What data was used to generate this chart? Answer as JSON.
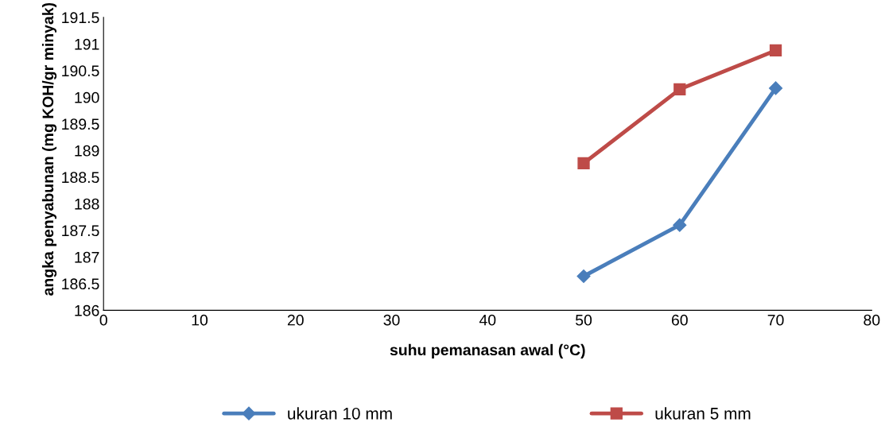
{
  "chart_data": {
    "type": "line",
    "xlabel": "suhu pemanasan awal (°C)",
    "ylabel": "angka penyabunan (mg KOH/gr minyak)",
    "xlim": [
      0,
      80
    ],
    "xticks": [
      0,
      10,
      20,
      30,
      40,
      50,
      60,
      70,
      80
    ],
    "ylim": [
      186,
      191.5
    ],
    "yticks": [
      186,
      {
        "value": 186.5,
        "label": "186.5"
      },
      187,
      {
        "value": 187.5,
        "label": "187.5"
      },
      188,
      {
        "value": 188.5,
        "label": "188.5"
      },
      189,
      {
        "value": 189.5,
        "label": "189.5"
      },
      190,
      {
        "value": 190.5,
        "label": "190.5"
      },
      191,
      {
        "value": 191.5,
        "label": "191.5"
      }
    ],
    "grid": false,
    "legend": "bottom",
    "line_style": "solid",
    "series": [
      {
        "name": "ukuran 10 mm",
        "color": "#4a7ebb",
        "marker": "diamond",
        "x": [
          50,
          60,
          70
        ],
        "values": [
          186.64,
          187.6,
          190.17
        ]
      },
      {
        "name": "ukuran 5 mm",
        "color": "#be4b48",
        "marker": "square",
        "x": [
          50,
          60,
          70
        ],
        "values": [
          188.76,
          190.15,
          190.88
        ]
      }
    ]
  }
}
